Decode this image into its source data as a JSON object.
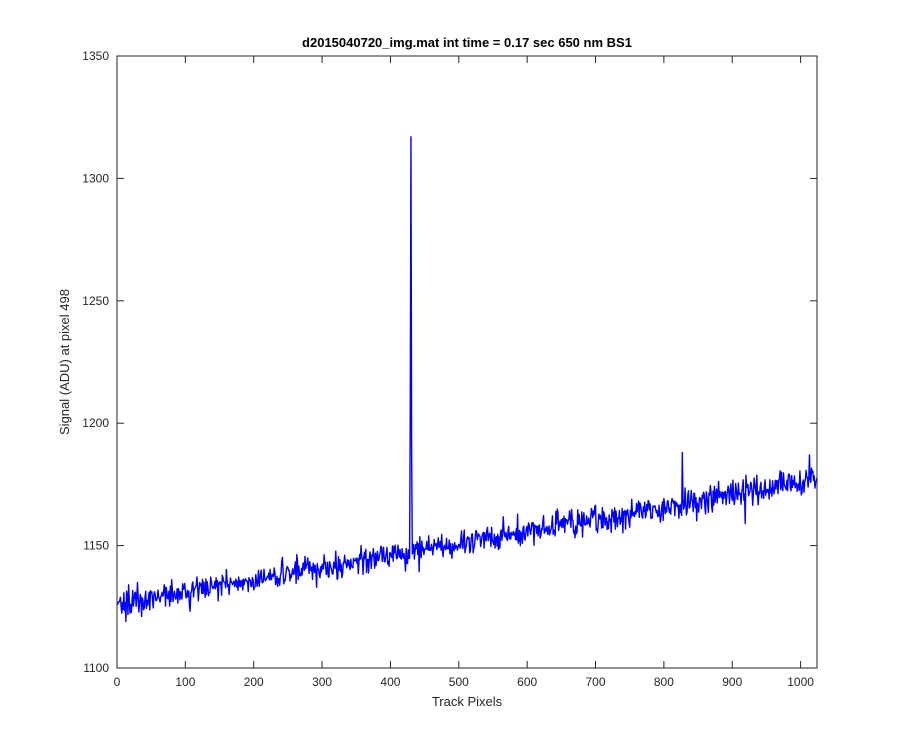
{
  "chart_data": {
    "type": "line",
    "title": "d2015040720_img.mat int time = 0.17 sec  650 nm BS1",
    "xlabel": "Track Pixels",
    "ylabel": "Signal (ADU) at pixel 498",
    "xlim": [
      0,
      1024
    ],
    "ylim": [
      1100,
      1350
    ],
    "xticks": [
      0,
      100,
      200,
      300,
      400,
      500,
      600,
      700,
      800,
      900,
      1000
    ],
    "yticks": [
      1100,
      1150,
      1200,
      1250,
      1300,
      1350
    ],
    "grid": false,
    "series_color": "#0000ff",
    "series": [
      {
        "trend": {
          "x": [
            1,
            1024
          ],
          "y": [
            1126,
            1177
          ]
        },
        "noise_amplitude": 7,
        "spikes": [
          {
            "x": 429,
            "y": 1205
          },
          {
            "x": 430,
            "y": 1317
          },
          {
            "x": 431,
            "y": 1188
          },
          {
            "x": 827,
            "y": 1188
          },
          {
            "x": 1013,
            "y": 1187
          },
          {
            "x": 919,
            "y": 1159
          },
          {
            "x": 13,
            "y": 1119
          }
        ]
      }
    ]
  }
}
